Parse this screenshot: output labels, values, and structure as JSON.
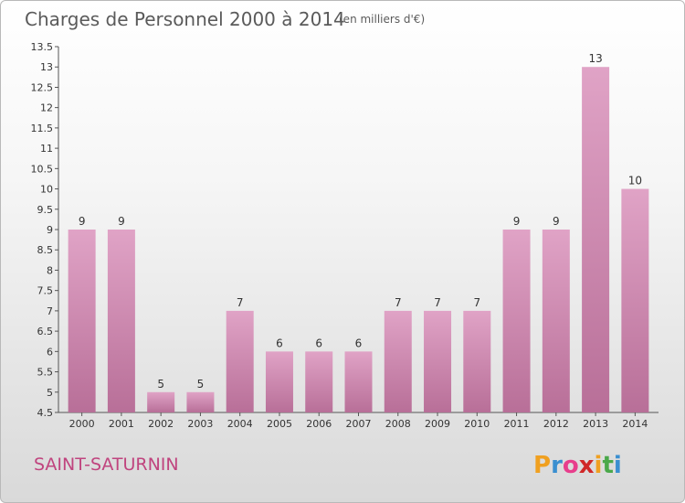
{
  "chart_data": {
    "type": "bar",
    "title": "Charges de Personnel 2000 à 2014",
    "subtitle": "(en milliers d'€)",
    "categories": [
      "2000",
      "2001",
      "2002",
      "2003",
      "2004",
      "2005",
      "2006",
      "2007",
      "2008",
      "2009",
      "2010",
      "2011",
      "2012",
      "2013",
      "2014"
    ],
    "values": [
      9,
      9,
      5,
      5,
      7,
      6,
      6,
      6,
      7,
      7,
      7,
      9,
      9,
      13,
      10
    ],
    "value_labels": [
      "9",
      "9",
      "5",
      "5",
      "7",
      "6",
      "6",
      "6",
      "7",
      "7",
      "7",
      "9",
      "9",
      "13",
      "10"
    ],
    "ylim": [
      4.5,
      13.5
    ],
    "yticks": [
      "4.5",
      "5",
      "5.5",
      "6",
      "6.5",
      "7",
      "7.5",
      "8",
      "8.5",
      "9",
      "9.5",
      "10",
      "10.5",
      "11",
      "11.5",
      "12",
      "12.5",
      "13",
      "13.5"
    ],
    "grid": false,
    "bar_color": "#e0a3c6",
    "bar_color_dark": "#b86f98"
  },
  "footer": {
    "place": "SAINT-SATURNIN",
    "brand_letters": [
      "P",
      "r",
      "o",
      "x",
      "i",
      "t",
      "i"
    ],
    "brand_colors": [
      "#f0a020",
      "#3a8fd0",
      "#e83e8c",
      "#d02828",
      "#f0a020",
      "#4aa84a",
      "#3a8fd0"
    ]
  }
}
